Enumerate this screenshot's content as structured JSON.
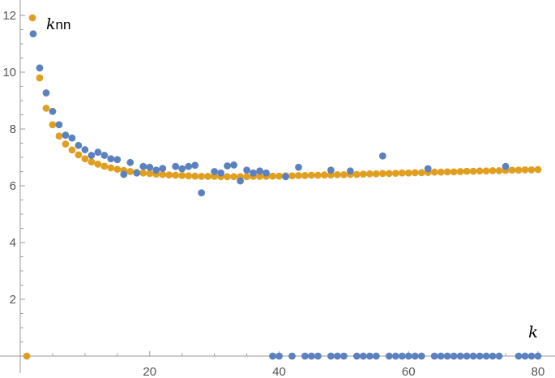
{
  "chart_data": {
    "type": "scatter",
    "title": "",
    "xlabel": "k",
    "ylabel": "",
    "xlim": [
      0,
      81.5
    ],
    "ylim": [
      0,
      12.4
    ],
    "x_ticks": [
      20,
      40,
      60,
      80
    ],
    "y_ticks": [
      2,
      4,
      6,
      8,
      10,
      12
    ],
    "x_minor_step": 5,
    "y_minor_step": 0.5,
    "grid": false,
    "legend": {
      "position": "top-left",
      "symbol": "k",
      "subscript": "nn",
      "series_index": 0
    },
    "colors": {
      "series_0": "#E19F22",
      "series_1": "#5B81BF",
      "axis": "#999999",
      "tick_label": "#555555"
    },
    "series": [
      {
        "color": "#E19F22",
        "points": [
          [
            1,
            0
          ],
          [
            3,
            9.8
          ],
          [
            4,
            8.73
          ],
          [
            5,
            8.15
          ],
          [
            6,
            7.75
          ],
          [
            7,
            7.47
          ],
          [
            8,
            7.26
          ],
          [
            9,
            7.09
          ],
          [
            10,
            6.95
          ],
          [
            11,
            6.84
          ],
          [
            12,
            6.76
          ],
          [
            13,
            6.69
          ],
          [
            14,
            6.63
          ],
          [
            15,
            6.58
          ],
          [
            16,
            6.54
          ],
          [
            17,
            6.5
          ],
          [
            18,
            6.47
          ],
          [
            19,
            6.45
          ],
          [
            20,
            6.43
          ],
          [
            21,
            6.41
          ],
          [
            22,
            6.4
          ],
          [
            23,
            6.38
          ],
          [
            24,
            6.37
          ],
          [
            25,
            6.36
          ],
          [
            26,
            6.35
          ],
          [
            27,
            6.34
          ],
          [
            28,
            6.33
          ],
          [
            29,
            6.33
          ],
          [
            30,
            6.33
          ],
          [
            31,
            6.32
          ],
          [
            32,
            6.32
          ],
          [
            33,
            6.32
          ],
          [
            34,
            6.32
          ],
          [
            35,
            6.32
          ],
          [
            36,
            6.33
          ],
          [
            37,
            6.33
          ],
          [
            38,
            6.33
          ],
          [
            39,
            6.34
          ],
          [
            40,
            6.34
          ],
          [
            41,
            6.35
          ],
          [
            42,
            6.35
          ],
          [
            43,
            6.36
          ],
          [
            44,
            6.36
          ],
          [
            45,
            6.37
          ],
          [
            46,
            6.37
          ],
          [
            47,
            6.38
          ],
          [
            48,
            6.38
          ],
          [
            49,
            6.39
          ],
          [
            50,
            6.39
          ],
          [
            51,
            6.4
          ],
          [
            52,
            6.4
          ],
          [
            53,
            6.41
          ],
          [
            54,
            6.42
          ],
          [
            55,
            6.42
          ],
          [
            56,
            6.43
          ],
          [
            57,
            6.43
          ],
          [
            58,
            6.44
          ],
          [
            59,
            6.45
          ],
          [
            60,
            6.45
          ],
          [
            61,
            6.46
          ],
          [
            62,
            6.46
          ],
          [
            63,
            6.47
          ],
          [
            64,
            6.48
          ],
          [
            65,
            6.48
          ],
          [
            66,
            6.49
          ],
          [
            67,
            6.49
          ],
          [
            68,
            6.5
          ],
          [
            69,
            6.51
          ],
          [
            70,
            6.51
          ],
          [
            71,
            6.52
          ],
          [
            72,
            6.52
          ],
          [
            73,
            6.53
          ],
          [
            74,
            6.53
          ],
          [
            75,
            6.54
          ],
          [
            76,
            6.55
          ],
          [
            77,
            6.55
          ],
          [
            78,
            6.56
          ],
          [
            79,
            6.56
          ],
          [
            80,
            6.57
          ]
        ]
      },
      {
        "color": "#5B81BF",
        "points": [
          [
            2,
            11.35
          ],
          [
            3,
            10.15
          ],
          [
            4,
            9.27
          ],
          [
            5,
            8.62
          ],
          [
            6,
            8.15
          ],
          [
            7,
            7.78
          ],
          [
            8,
            7.68
          ],
          [
            9,
            7.42
          ],
          [
            10,
            7.27
          ],
          [
            11,
            7.07
          ],
          [
            12,
            7.18
          ],
          [
            13,
            7.07
          ],
          [
            14,
            6.95
          ],
          [
            15,
            6.92
          ],
          [
            16,
            6.4
          ],
          [
            17,
            6.82
          ],
          [
            18,
            6.45
          ],
          [
            19,
            6.68
          ],
          [
            20,
            6.65
          ],
          [
            21,
            6.55
          ],
          [
            22,
            6.61
          ],
          [
            24,
            6.68
          ],
          [
            25,
            6.6
          ],
          [
            26,
            6.68
          ],
          [
            27,
            6.72
          ],
          [
            28,
            5.75
          ],
          [
            30,
            6.5
          ],
          [
            31,
            6.45
          ],
          [
            32,
            6.7
          ],
          [
            33,
            6.73
          ],
          [
            34,
            6.17
          ],
          [
            35,
            6.55
          ],
          [
            36,
            6.45
          ],
          [
            37,
            6.52
          ],
          [
            38,
            6.45
          ],
          [
            39,
            0
          ],
          [
            40,
            0
          ],
          [
            41,
            6.32
          ],
          [
            42,
            0
          ],
          [
            43,
            6.65
          ],
          [
            44,
            0
          ],
          [
            45,
            0
          ],
          [
            46,
            0
          ],
          [
            48,
            6.55
          ],
          [
            48,
            0
          ],
          [
            49,
            0
          ],
          [
            50,
            0
          ],
          [
            51,
            6.52
          ],
          [
            52,
            0
          ],
          [
            53,
            0
          ],
          [
            54,
            0
          ],
          [
            55,
            0
          ],
          [
            56,
            7.05
          ],
          [
            57,
            0
          ],
          [
            58,
            0
          ],
          [
            59,
            0
          ],
          [
            60,
            0
          ],
          [
            61,
            0
          ],
          [
            62,
            0
          ],
          [
            63,
            6.6
          ],
          [
            64,
            0
          ],
          [
            65,
            0
          ],
          [
            66,
            0
          ],
          [
            67,
            0
          ],
          [
            68,
            0
          ],
          [
            69,
            0
          ],
          [
            70,
            0
          ],
          [
            71,
            0
          ],
          [
            72,
            0
          ],
          [
            73,
            0
          ],
          [
            74,
            0
          ],
          [
            75,
            6.68
          ],
          [
            77,
            0
          ],
          [
            78,
            0
          ],
          [
            79,
            0
          ],
          [
            80,
            0
          ]
        ]
      }
    ]
  }
}
